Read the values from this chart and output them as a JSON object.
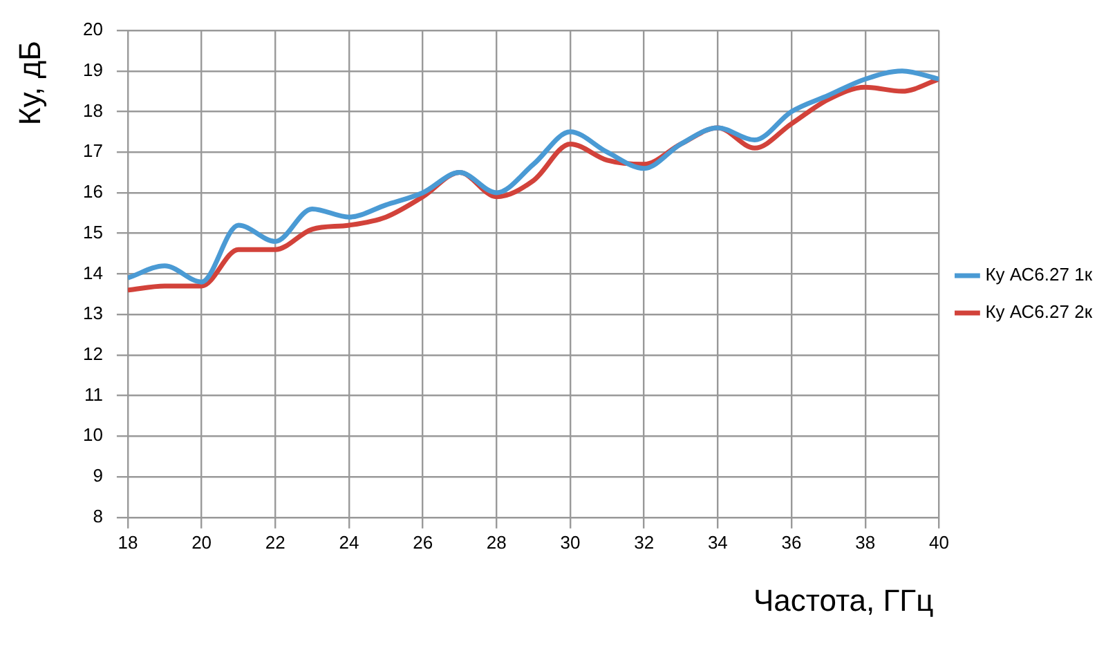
{
  "chart_data": {
    "type": "line",
    "xlabel": "Частота, ГГц",
    "ylabel": "Ку, дБ",
    "x": [
      18,
      19,
      20,
      21,
      22,
      23,
      24,
      25,
      26,
      27,
      28,
      29,
      30,
      31,
      32,
      33,
      34,
      35,
      36,
      37,
      38,
      39,
      40
    ],
    "series": [
      {
        "name": "Ку АС6.27 1к",
        "color": "#4a9ad4",
        "values": [
          13.9,
          14.2,
          13.8,
          15.2,
          14.8,
          15.6,
          15.4,
          15.7,
          16.0,
          16.5,
          16.0,
          16.7,
          17.5,
          17.0,
          16.6,
          17.2,
          17.6,
          17.3,
          18.0,
          18.4,
          18.8,
          19.0,
          18.8
        ]
      },
      {
        "name": "Ку АС6.27 2к",
        "color": "#d2423a",
        "values": [
          13.6,
          13.7,
          13.7,
          14.6,
          14.6,
          15.1,
          15.2,
          15.4,
          15.9,
          16.5,
          15.9,
          16.3,
          17.2,
          16.8,
          16.7,
          17.2,
          17.6,
          17.1,
          17.7,
          18.3,
          18.6,
          18.5,
          18.8
        ]
      }
    ],
    "xlim": [
      18,
      40
    ],
    "xticks": [
      18,
      20,
      22,
      24,
      26,
      28,
      30,
      32,
      34,
      36,
      38,
      40
    ],
    "ylim": [
      8,
      20
    ],
    "yticks": [
      8,
      9,
      10,
      11,
      12,
      13,
      14,
      15,
      16,
      17,
      18,
      19,
      20
    ],
    "grid": true,
    "legend": "right",
    "marker": "none",
    "line_style": "solid"
  }
}
